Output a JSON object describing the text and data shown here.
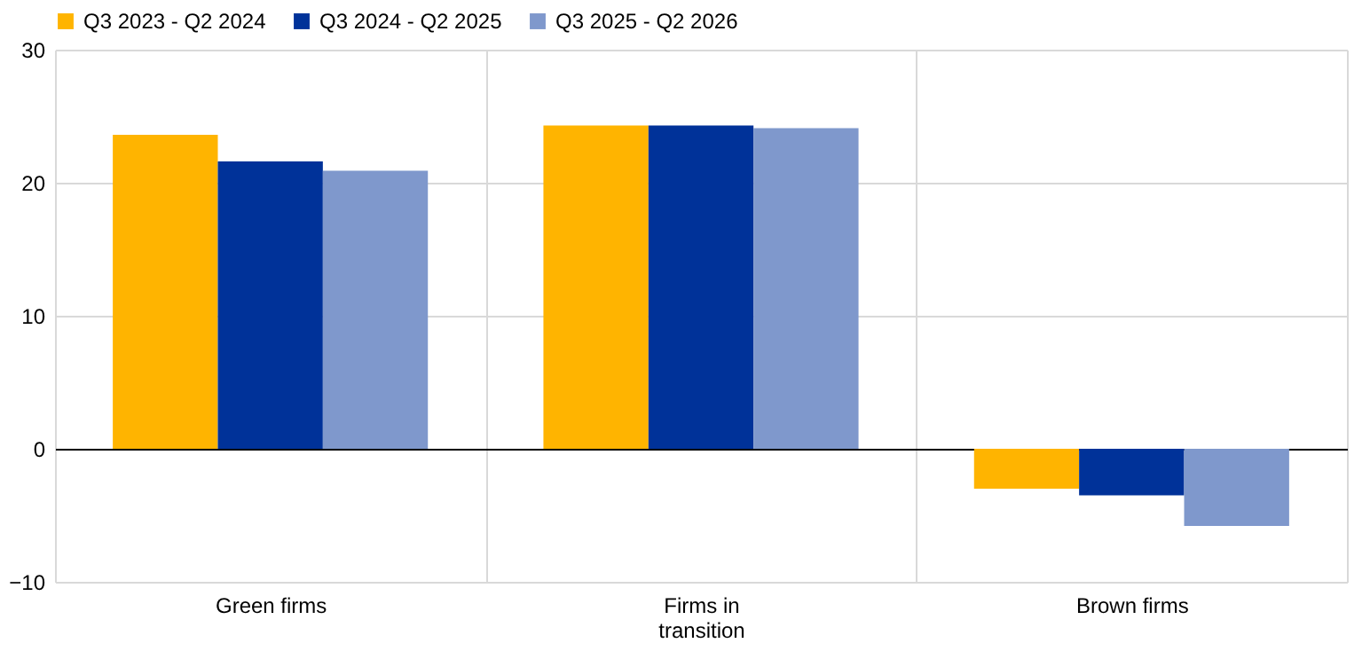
{
  "chart_data": {
    "type": "bar",
    "categories": [
      "Green firms",
      "Firms in transition",
      "Brown firms"
    ],
    "series": [
      {
        "name": "Q3 2023 - Q2 2024",
        "color": "#ffb400",
        "values": [
          23.6,
          24.3,
          -3.0
        ]
      },
      {
        "name": "Q3 2024 - Q2 2025",
        "color": "#003299",
        "values": [
          21.6,
          24.3,
          -3.5
        ]
      },
      {
        "name": "Q3 2025 - Q2 2026",
        "color": "#7f98cc",
        "values": [
          20.9,
          24.1,
          -5.8
        ]
      }
    ],
    "ylim": [
      -10,
      30
    ],
    "yticks": [
      -10,
      0,
      10,
      20,
      30
    ],
    "grid": true,
    "legend": "top left"
  }
}
